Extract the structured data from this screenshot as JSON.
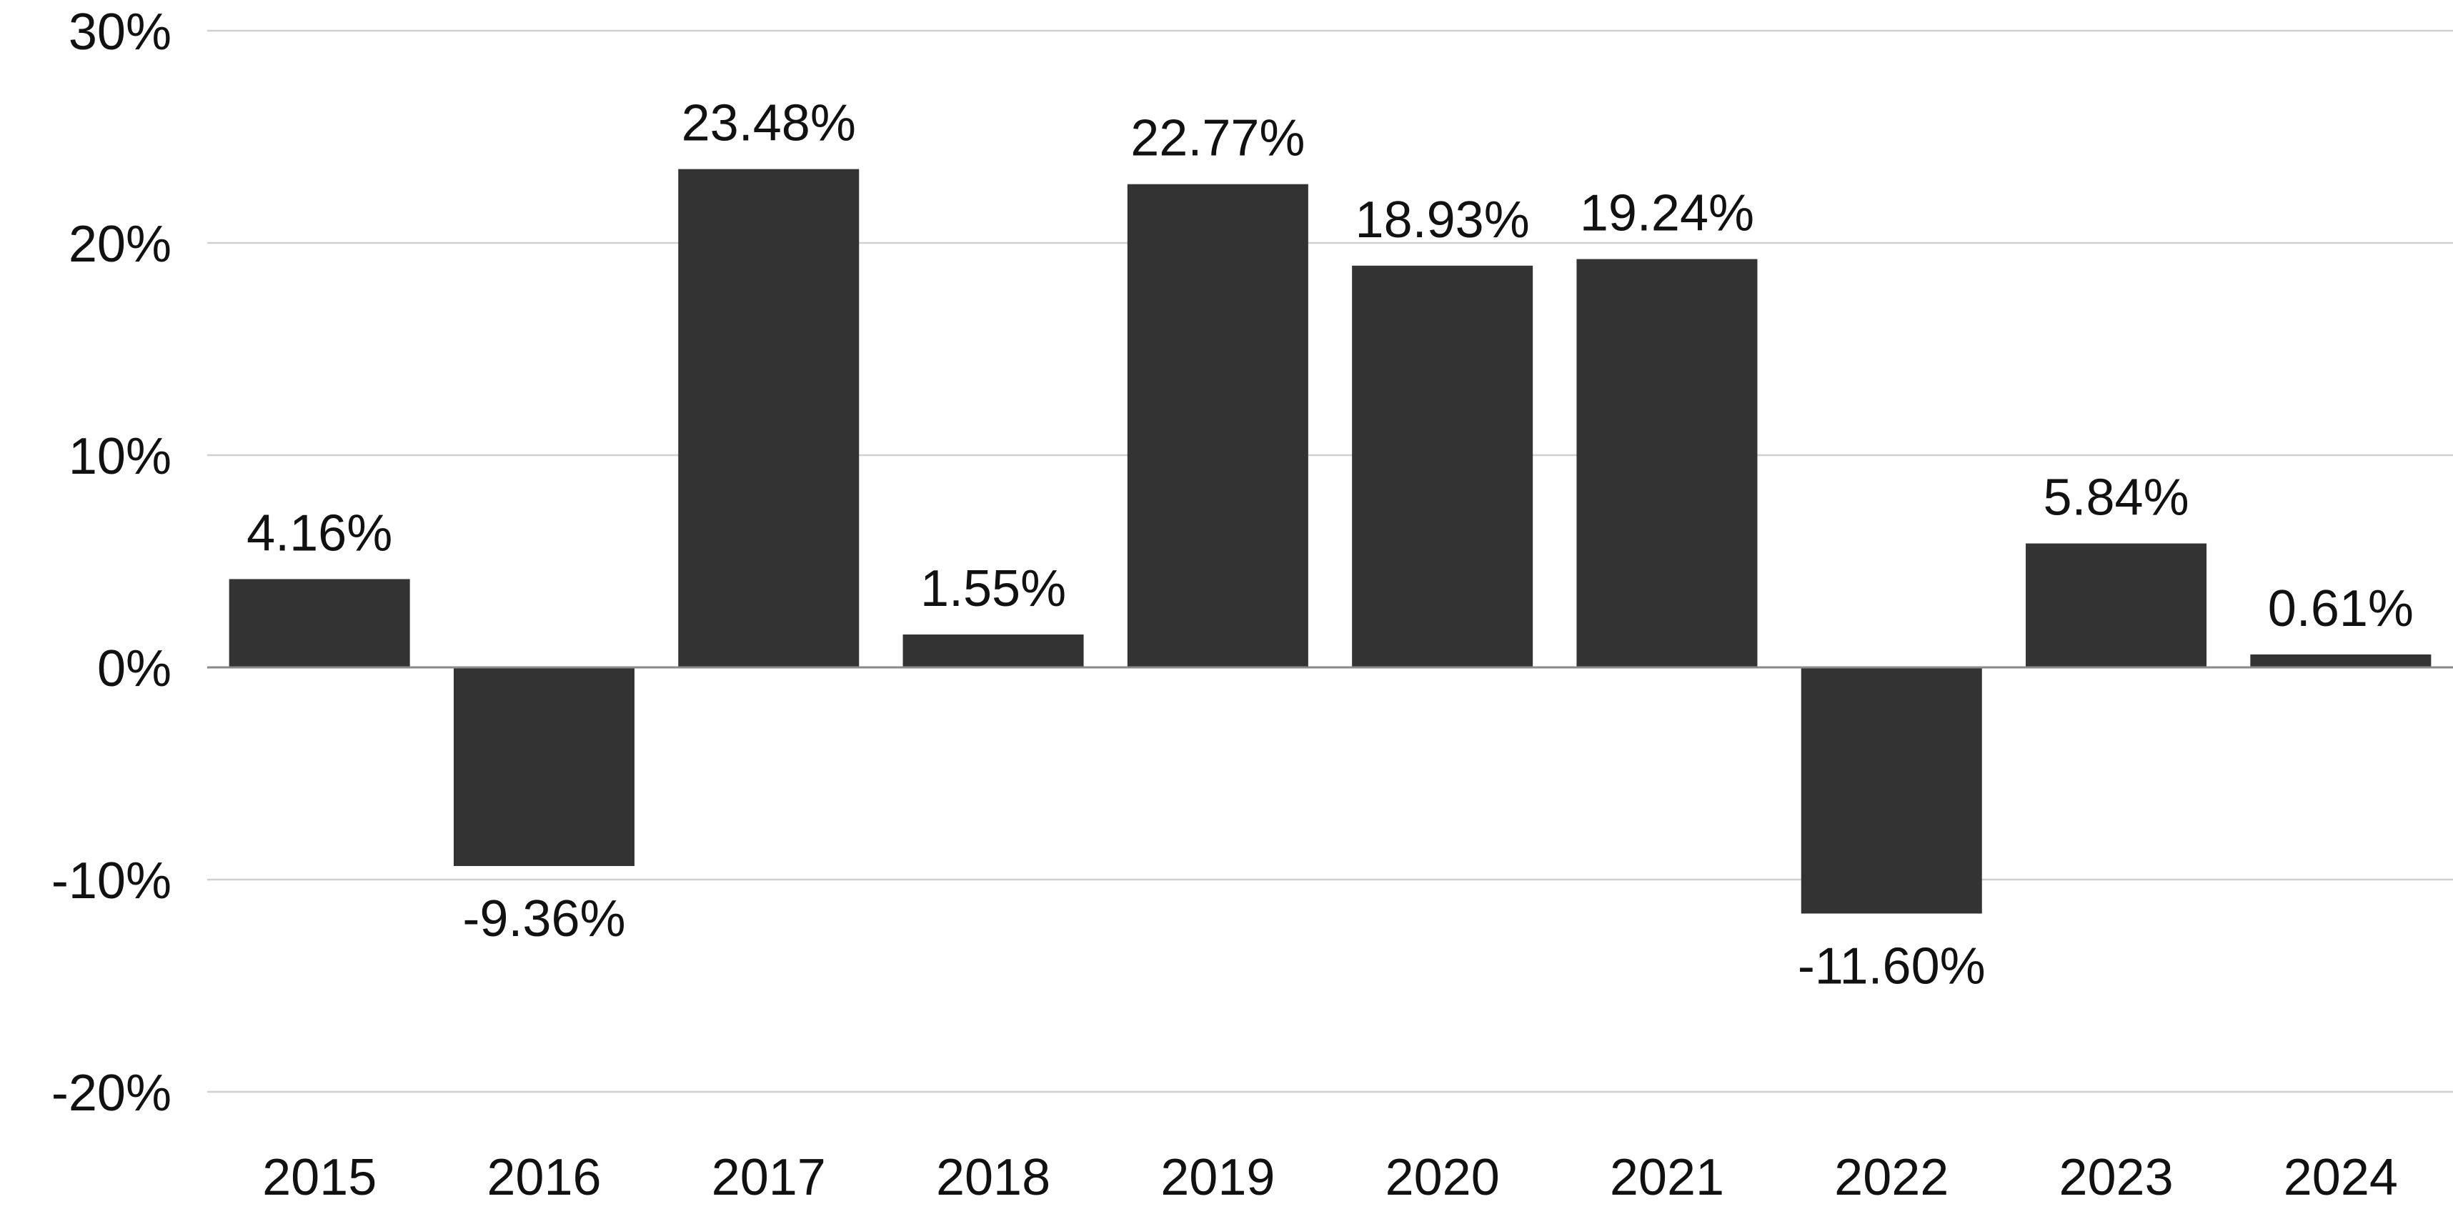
{
  "chart_data": {
    "type": "bar",
    "categories": [
      "2015",
      "2016",
      "2017",
      "2018",
      "2019",
      "2020",
      "2021",
      "2022",
      "2023",
      "2024"
    ],
    "values": [
      4.16,
      -9.36,
      23.48,
      1.55,
      22.77,
      18.93,
      19.24,
      -11.6,
      5.84,
      0.61
    ],
    "data_labels": [
      "4.16%",
      "-9.36%",
      "23.48%",
      "1.55%",
      "22.77%",
      "18.93%",
      "19.24%",
      "-11.60%",
      "5.84%",
      "0.61%"
    ],
    "y_ticks": [
      30,
      20,
      10,
      0,
      -10,
      -20
    ],
    "y_tick_labels": [
      "30%",
      "20%",
      "10%",
      "0%",
      "-10%",
      "-20%"
    ],
    "ylim": [
      -20,
      30
    ],
    "grid": true,
    "legend": "none",
    "bar_color": "#333333",
    "grid_color": "#d0d0d0",
    "zero_line_color": "#8a8a8a",
    "text_color": "#111111"
  }
}
